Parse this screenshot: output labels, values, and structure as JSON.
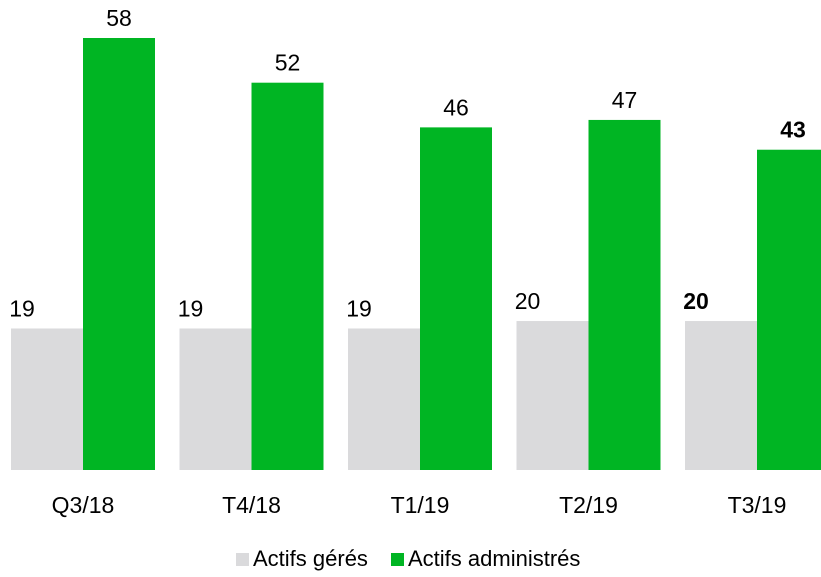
{
  "chart_data": {
    "type": "bar",
    "title": "",
    "xlabel": "",
    "ylabel": "",
    "categories": [
      "Q3/18",
      "T4/18",
      "T1/19",
      "T2/19",
      "T3/19"
    ],
    "series": [
      {
        "name": "Actifs gérés",
        "color": "#dadadc",
        "values": [
          19,
          19,
          19,
          20,
          20
        ],
        "bold_last_label": true
      },
      {
        "name": "Actifs administrés",
        "color": "#00b523",
        "values": [
          58,
          52,
          46,
          47,
          43
        ],
        "bold_last_label": true
      }
    ],
    "ylim": [
      0,
      58
    ],
    "grid": false,
    "legend_position": "bottom-center",
    "data_labels": true
  }
}
